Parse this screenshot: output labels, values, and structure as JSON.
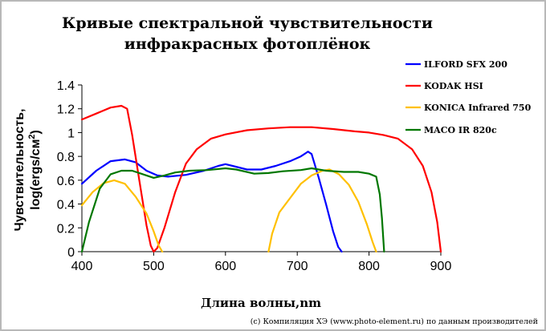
{
  "chart_data": {
    "type": "line",
    "title_line1": "Кривые спектральной чувствительности",
    "title_line2": "инфракрасных фотоплёнок",
    "xlabel": "Длина волны,nm",
    "ylabel_line1": "Чувствительность,",
    "ylabel_line2": "log(ergs/cм",
    "ylabel_sup": "2",
    "ylabel_close": ")",
    "xlim": [
      400,
      900
    ],
    "ylim": [
      0,
      1.4
    ],
    "x_ticks": [
      "400",
      "500",
      "600",
      "700",
      "800",
      "900"
    ],
    "y_ticks": [
      "0",
      "0.2",
      "0.4",
      "0.6",
      "0.8",
      "1",
      "1.2",
      "1.4"
    ],
    "grid": false,
    "legend_position": "right",
    "footer": "(c) Компиляция ХЭ (www.photo-element.ru) по данным производителей",
    "series": [
      {
        "name": "ILFORD SFX 200",
        "color": "#0000ff",
        "points": [
          [
            400,
            0.57
          ],
          [
            420,
            0.68
          ],
          [
            440,
            0.76
          ],
          [
            460,
            0.775
          ],
          [
            475,
            0.75
          ],
          [
            490,
            0.68
          ],
          [
            505,
            0.64
          ],
          [
            520,
            0.63
          ],
          [
            545,
            0.645
          ],
          [
            570,
            0.68
          ],
          [
            590,
            0.72
          ],
          [
            600,
            0.735
          ],
          [
            610,
            0.72
          ],
          [
            630,
            0.69
          ],
          [
            650,
            0.69
          ],
          [
            670,
            0.72
          ],
          [
            690,
            0.76
          ],
          [
            705,
            0.8
          ],
          [
            715,
            0.84
          ],
          [
            720,
            0.82
          ],
          [
            730,
            0.62
          ],
          [
            740,
            0.4
          ],
          [
            750,
            0.17
          ],
          [
            757,
            0.04
          ],
          [
            762,
            0.0
          ]
        ]
      },
      {
        "name": "KODAK HSI",
        "color": "#ff0000",
        "points": [
          [
            400,
            1.11
          ],
          [
            420,
            1.16
          ],
          [
            440,
            1.21
          ],
          [
            455,
            1.225
          ],
          [
            463,
            1.2
          ],
          [
            470,
            0.98
          ],
          [
            480,
            0.6
          ],
          [
            490,
            0.22
          ],
          [
            496,
            0.05
          ],
          [
            500,
            0.0
          ],
          [
            505,
            0.03
          ],
          [
            515,
            0.2
          ],
          [
            530,
            0.5
          ],
          [
            545,
            0.74
          ],
          [
            560,
            0.86
          ],
          [
            580,
            0.95
          ],
          [
            600,
            0.985
          ],
          [
            630,
            1.02
          ],
          [
            660,
            1.035
          ],
          [
            690,
            1.045
          ],
          [
            720,
            1.045
          ],
          [
            750,
            1.03
          ],
          [
            780,
            1.01
          ],
          [
            800,
            1.0
          ],
          [
            820,
            0.98
          ],
          [
            840,
            0.95
          ],
          [
            860,
            0.86
          ],
          [
            875,
            0.72
          ],
          [
            887,
            0.5
          ],
          [
            895,
            0.25
          ],
          [
            900,
            0.0
          ]
        ]
      },
      {
        "name": "KONICA Infrared 750",
        "color": "#ffc000",
        "points": [
          [
            400,
            0.39
          ],
          [
            415,
            0.5
          ],
          [
            430,
            0.575
          ],
          [
            445,
            0.6
          ],
          [
            460,
            0.57
          ],
          [
            475,
            0.46
          ],
          [
            490,
            0.32
          ],
          [
            500,
            0.17
          ],
          [
            507,
            0.05
          ],
          [
            512,
            0.0
          ],
          [
            660,
            0.0
          ],
          [
            665,
            0.15
          ],
          [
            675,
            0.33
          ],
          [
            690,
            0.45
          ],
          [
            705,
            0.57
          ],
          [
            720,
            0.64
          ],
          [
            735,
            0.68
          ],
          [
            745,
            0.69
          ],
          [
            758,
            0.65
          ],
          [
            772,
            0.56
          ],
          [
            785,
            0.42
          ],
          [
            797,
            0.23
          ],
          [
            805,
            0.08
          ],
          [
            810,
            0.0
          ]
        ]
      },
      {
        "name": "MACO IR 820c",
        "color": "#007700",
        "points": [
          [
            400,
            0.0
          ],
          [
            410,
            0.25
          ],
          [
            425,
            0.53
          ],
          [
            440,
            0.65
          ],
          [
            455,
            0.68
          ],
          [
            470,
            0.68
          ],
          [
            485,
            0.65
          ],
          [
            500,
            0.62
          ],
          [
            515,
            0.64
          ],
          [
            530,
            0.665
          ],
          [
            550,
            0.68
          ],
          [
            575,
            0.685
          ],
          [
            600,
            0.7
          ],
          [
            615,
            0.69
          ],
          [
            640,
            0.655
          ],
          [
            660,
            0.66
          ],
          [
            680,
            0.675
          ],
          [
            705,
            0.685
          ],
          [
            720,
            0.7
          ],
          [
            740,
            0.68
          ],
          [
            765,
            0.67
          ],
          [
            785,
            0.67
          ],
          [
            800,
            0.655
          ],
          [
            810,
            0.63
          ],
          [
            815,
            0.48
          ],
          [
            818,
            0.28
          ],
          [
            821,
            0.0
          ]
        ]
      }
    ]
  }
}
